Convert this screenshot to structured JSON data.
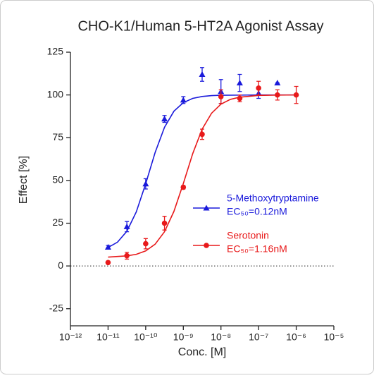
{
  "chart_data": {
    "type": "dose-response",
    "title": "CHO-K1/Human 5-HT2A Agonist Assay",
    "x_label": "Conc. [M]",
    "y_label": "Effect  [%]",
    "xscale": "log",
    "xlim": [
      1e-12,
      1e-05
    ],
    "xticks": [
      {
        "value": 1e-12,
        "label": "10⁻¹²"
      },
      {
        "value": 1e-11,
        "label": "10⁻¹¹"
      },
      {
        "value": 1e-10,
        "label": "10⁻¹⁰"
      },
      {
        "value": 1e-09,
        "label": "10⁻⁹"
      },
      {
        "value": 1e-08,
        "label": "10⁻⁸"
      },
      {
        "value": 1e-07,
        "label": "10⁻⁷"
      },
      {
        "value": 1e-06,
        "label": "10⁻⁶"
      },
      {
        "value": 1e-05,
        "label": "10⁻⁵"
      }
    ],
    "ylim": [
      -35,
      125
    ],
    "yticks": [
      -25,
      0,
      25,
      50,
      75,
      100,
      125
    ],
    "hline": 0,
    "series": [
      {
        "name": "5-Methoxytryptamine",
        "ec50_label": "EC₅₀=0.12nM",
        "color": "#1a1adb",
        "marker": "triangle",
        "x": [
          1e-11,
          3.16e-11,
          1e-10,
          3.16e-10,
          1e-09,
          3.16e-09,
          1e-08,
          3.16e-08,
          1e-07,
          3.16e-07
        ],
        "values": [
          11,
          23,
          48,
          86,
          97,
          112,
          102,
          107,
          101,
          107
        ],
        "errors": [
          1,
          3,
          3,
          2,
          2,
          4,
          7,
          5,
          3,
          0
        ],
        "fit_x": [
          1e-11,
          1.778e-11,
          3.162e-11,
          5.623e-11,
          1e-10,
          1.778e-10,
          3.162e-10,
          5.623e-10,
          1e-09,
          1.778e-09,
          3.162e-09,
          5.623e-09,
          1e-08,
          3.162e-08,
          1e-07,
          3.162e-07,
          1e-06
        ],
        "fit_values": [
          10.8,
          13.9,
          20.3,
          31.6,
          48.1,
          66.3,
          81.1,
          90.5,
          95.5,
          98.0,
          99.1,
          99.6,
          99.8,
          99.9,
          100,
          100,
          100
        ]
      },
      {
        "name": "Serotonin",
        "ec50_label": "EC₅₀=1.16nM",
        "color": "#e8191a",
        "marker": "circle",
        "x": [
          1e-11,
          3.16e-11,
          1e-10,
          3.16e-10,
          1e-09,
          3.16e-09,
          1e-08,
          3.16e-08,
          1e-07,
          3.16e-07,
          1e-06
        ],
        "values": [
          2,
          6,
          13,
          25,
          46,
          77,
          99,
          98,
          104,
          100,
          100
        ],
        "errors": [
          0.5,
          2,
          3,
          4,
          1,
          3,
          4,
          2,
          4,
          3,
          5
        ],
        "fit_x": [
          1e-11,
          3.162e-11,
          5.623e-11,
          1e-10,
          1.778e-10,
          3.162e-10,
          5.623e-10,
          1e-09,
          1.778e-09,
          3.162e-09,
          5.623e-09,
          1e-08,
          1.778e-08,
          3.162e-08,
          1e-07,
          3.162e-07,
          1e-06
        ],
        "fit_values": [
          5.2,
          5.9,
          6.8,
          8.8,
          12.7,
          20.0,
          31.9,
          48.2,
          65.7,
          80.0,
          89.3,
          94.6,
          97.4,
          98.7,
          99.7,
          99.9,
          100
        ]
      }
    ]
  }
}
